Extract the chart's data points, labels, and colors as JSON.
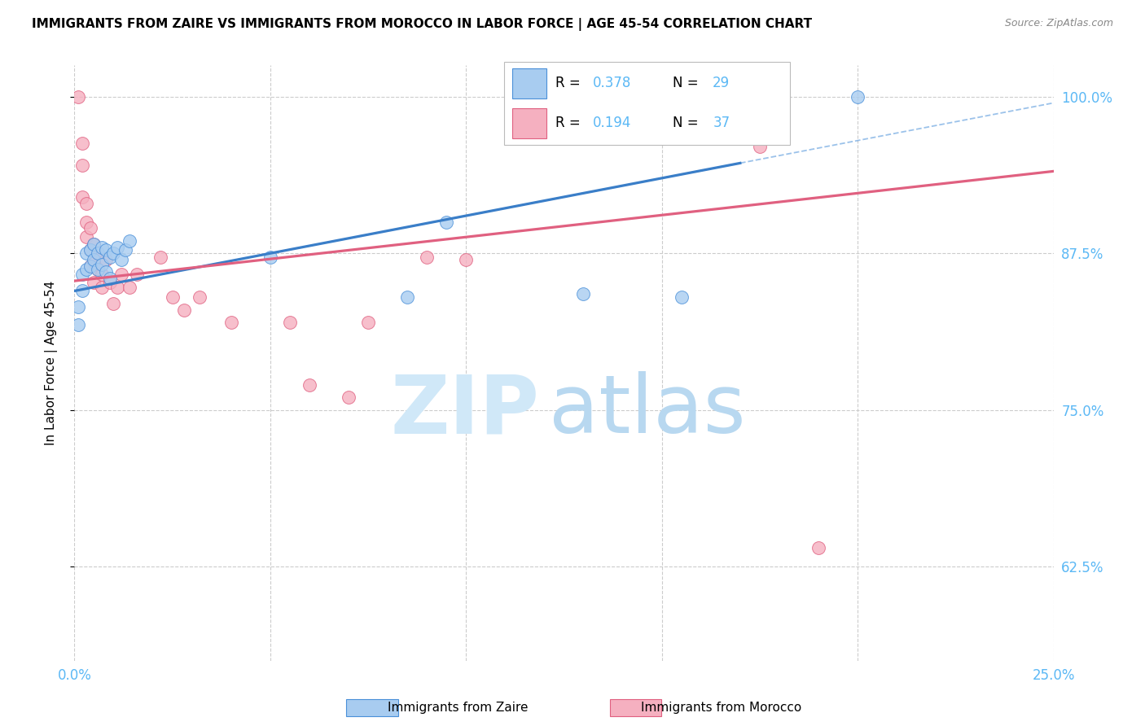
{
  "title": "IMMIGRANTS FROM ZAIRE VS IMMIGRANTS FROM MOROCCO IN LABOR FORCE | AGE 45-54 CORRELATION CHART",
  "source": "Source: ZipAtlas.com",
  "ylabel": "In Labor Force | Age 45-54",
  "x_min": 0.0,
  "x_max": 0.25,
  "y_min": 0.55,
  "y_max": 1.025,
  "x_ticks": [
    0.0,
    0.05,
    0.1,
    0.15,
    0.2,
    0.25
  ],
  "y_ticks": [
    0.625,
    0.75,
    0.875,
    1.0
  ],
  "y_tick_labels": [
    "62.5%",
    "75.0%",
    "87.5%",
    "100.0%"
  ],
  "r_zaire": "0.378",
  "n_zaire": "29",
  "r_morocco": "0.194",
  "n_morocco": "37",
  "color_zaire_fill": "#A8CCF0",
  "color_zaire_edge": "#4A90D9",
  "color_morocco_fill": "#F5B0C0",
  "color_morocco_edge": "#E06080",
  "color_zaire_line": "#3A7EC8",
  "color_morocco_line": "#E06080",
  "color_tick_labels": "#5BB8F5",
  "color_grid": "#CCCCCC",
  "watermark_zip_color": "#D0E8F8",
  "watermark_atlas_color": "#B8D8F0",
  "zaire_points": [
    [
      0.001,
      0.832
    ],
    [
      0.001,
      0.818
    ],
    [
      0.002,
      0.858
    ],
    [
      0.002,
      0.845
    ],
    [
      0.003,
      0.875
    ],
    [
      0.003,
      0.862
    ],
    [
      0.004,
      0.878
    ],
    [
      0.004,
      0.865
    ],
    [
      0.005,
      0.882
    ],
    [
      0.005,
      0.87
    ],
    [
      0.006,
      0.875
    ],
    [
      0.006,
      0.862
    ],
    [
      0.007,
      0.88
    ],
    [
      0.007,
      0.866
    ],
    [
      0.008,
      0.878
    ],
    [
      0.008,
      0.86
    ],
    [
      0.009,
      0.872
    ],
    [
      0.009,
      0.855
    ],
    [
      0.01,
      0.875
    ],
    [
      0.011,
      0.88
    ],
    [
      0.012,
      0.87
    ],
    [
      0.013,
      0.878
    ],
    [
      0.014,
      0.885
    ],
    [
      0.05,
      0.872
    ],
    [
      0.085,
      0.84
    ],
    [
      0.095,
      0.9
    ],
    [
      0.13,
      0.843
    ],
    [
      0.155,
      0.84
    ],
    [
      0.2,
      1.0
    ]
  ],
  "morocco_points": [
    [
      0.001,
      1.0
    ],
    [
      0.002,
      0.963
    ],
    [
      0.002,
      0.945
    ],
    [
      0.002,
      0.92
    ],
    [
      0.003,
      0.915
    ],
    [
      0.003,
      0.9
    ],
    [
      0.003,
      0.888
    ],
    [
      0.004,
      0.895
    ],
    [
      0.004,
      0.878
    ],
    [
      0.004,
      0.865
    ],
    [
      0.005,
      0.882
    ],
    [
      0.005,
      0.868
    ],
    [
      0.005,
      0.852
    ],
    [
      0.006,
      0.875
    ],
    [
      0.006,
      0.862
    ],
    [
      0.007,
      0.858
    ],
    [
      0.007,
      0.848
    ],
    [
      0.008,
      0.87
    ],
    [
      0.009,
      0.852
    ],
    [
      0.01,
      0.835
    ],
    [
      0.011,
      0.848
    ],
    [
      0.012,
      0.858
    ],
    [
      0.014,
      0.848
    ],
    [
      0.016,
      0.858
    ],
    [
      0.022,
      0.872
    ],
    [
      0.025,
      0.84
    ],
    [
      0.028,
      0.83
    ],
    [
      0.032,
      0.84
    ],
    [
      0.04,
      0.82
    ],
    [
      0.055,
      0.82
    ],
    [
      0.06,
      0.77
    ],
    [
      0.07,
      0.76
    ],
    [
      0.075,
      0.82
    ],
    [
      0.09,
      0.872
    ],
    [
      0.1,
      0.87
    ],
    [
      0.175,
      0.96
    ],
    [
      0.19,
      0.64
    ]
  ]
}
